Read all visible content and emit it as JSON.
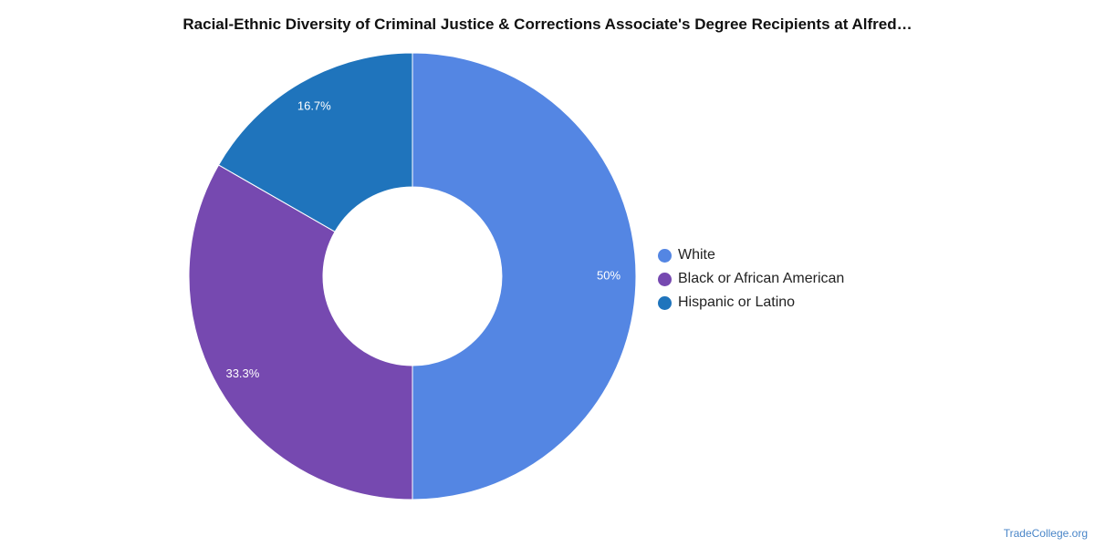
{
  "chart_data": {
    "type": "pie",
    "title": "Racial-Ethnic Diversity of Criminal Justice & Corrections Associate's Degree Recipients at Alfred…",
    "donut": true,
    "legend_position": "right",
    "slices": [
      {
        "name": "White",
        "value": 50,
        "label": "50%",
        "color": "#5486e3"
      },
      {
        "name": "Black or African American",
        "value": 33.3,
        "label": "33.3%",
        "color": "#7649b0"
      },
      {
        "name": "Hispanic or Latino",
        "value": 16.7,
        "label": "16.7%",
        "color": "#1f74bc"
      }
    ]
  },
  "footer": {
    "source": "TradeCollege.org"
  }
}
